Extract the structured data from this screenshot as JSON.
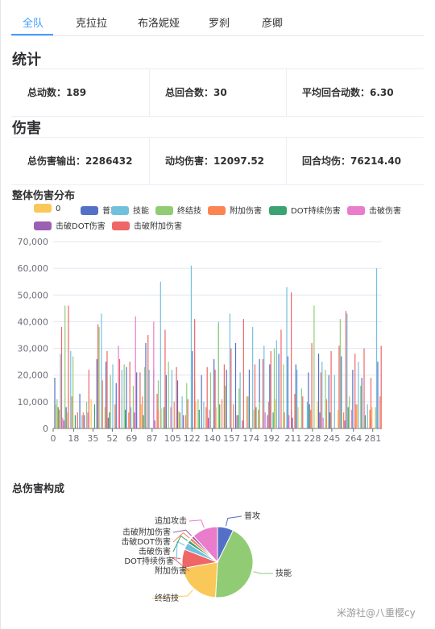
{
  "tabs": [
    {
      "label": "全队",
      "active": true
    },
    {
      "label": "克拉拉",
      "active": false
    },
    {
      "label": "布洛妮娅",
      "active": false
    },
    {
      "label": "罗刹",
      "active": false
    },
    {
      "label": "彦卿",
      "active": false
    }
  ],
  "stats_section": {
    "title": "统计",
    "items": [
      {
        "label": "总动数：",
        "value": "189"
      },
      {
        "label": "总回合数：",
        "value": "30"
      },
      {
        "label": "平均回合动数：",
        "value": "6.30"
      }
    ]
  },
  "damage_section": {
    "title": "伤害",
    "items": [
      {
        "label": "总伤害输出：",
        "value": "2286432"
      },
      {
        "label": "动均伤害：",
        "value": "12097.52"
      },
      {
        "label": "回合均伤：",
        "value": "76214.40"
      }
    ]
  },
  "watermark": "米游社@八重樱cy",
  "chart_data": [
    {
      "type": "bar",
      "title": "整体伤害分布",
      "legend_position": "top-left",
      "ylim": [
        0,
        70000
      ],
      "yticks": [
        "0",
        "10,000",
        "20,000",
        "30,000",
        "40,000",
        "50,000",
        "60,000",
        "70,000"
      ],
      "xlim": [
        0,
        289
      ],
      "xticks": [
        0,
        18,
        35,
        52,
        69,
        87,
        105,
        122,
        140,
        157,
        174,
        192,
        211,
        228,
        245,
        264,
        281
      ],
      "series": [
        {
          "name": "0",
          "color": "#fac858",
          "peaks": [
            [
              2,
              9000
            ],
            [
              12,
              6000
            ],
            [
              33,
              11000
            ],
            [
              45,
              8000
            ],
            [
              60,
              12000
            ],
            [
              77,
              9000
            ],
            [
              95,
              7500
            ],
            [
              110,
              6500
            ],
            [
              125,
              10000
            ],
            [
              143,
              8000
            ],
            [
              160,
              9000
            ],
            [
              176,
              7000
            ],
            [
              195,
              11000
            ],
            [
              215,
              8000
            ],
            [
              232,
              10000
            ],
            [
              250,
              7000
            ],
            [
              267,
              9000
            ],
            [
              280,
              8000
            ]
          ]
        },
        {
          "name": "普攻",
          "color": "#5470c6",
          "peaks": [
            [
              1,
              19000
            ],
            [
              11,
              8000
            ],
            [
              23,
              13000
            ],
            [
              38,
              26000
            ],
            [
              46,
              25000
            ],
            [
              55,
              17000
            ],
            [
              64,
              23000
            ],
            [
              73,
              21000
            ],
            [
              81,
              32000
            ],
            [
              88,
              22000
            ],
            [
              99,
              20000
            ],
            [
              109,
              18000
            ],
            [
              122,
              29000
            ],
            [
              130,
              20000
            ],
            [
              141,
              26000
            ],
            [
              152,
              22000
            ],
            [
              160,
              32000
            ],
            [
              172,
              22000
            ],
            [
              181,
              26000
            ],
            [
              190,
              24000
            ],
            [
              198,
              28000
            ],
            [
              206,
              27000
            ],
            [
              213,
              24000
            ],
            [
              224,
              21000
            ],
            [
              233,
              28000
            ],
            [
              242,
              20000
            ],
            [
              253,
              27000
            ],
            [
              263,
              22000
            ],
            [
              271,
              19000
            ],
            [
              285,
              25000
            ]
          ]
        },
        {
          "name": "技能",
          "color": "#73c0de",
          "peaks": [
            [
              6,
              28000
            ],
            [
              15,
              29000
            ],
            [
              25,
              5000
            ],
            [
              42,
              43000
            ],
            [
              52,
              24000
            ],
            [
              60,
              22000
            ],
            [
              68,
              8000
            ],
            [
              84,
              22000
            ],
            [
              94,
              55000
            ],
            [
              104,
              22000
            ],
            [
              113,
              12000
            ],
            [
              121,
              61000
            ],
            [
              132,
              10000
            ],
            [
              145,
              40000
            ],
            [
              155,
              43000
            ],
            [
              164,
              21000
            ],
            [
              175,
              38000
            ],
            [
              185,
              31000
            ],
            [
              196,
              33000
            ],
            [
              205,
              53000
            ],
            [
              214,
              22000
            ],
            [
              223,
              10000
            ],
            [
              236,
              25000
            ],
            [
              247,
              20000
            ],
            [
              258,
              43000
            ],
            [
              268,
              25000
            ],
            [
              276,
              9000
            ],
            [
              284,
              60000
            ]
          ]
        },
        {
          "name": "终结技",
          "color": "#91cc75",
          "peaks": [
            [
              3,
              11000
            ],
            [
              10,
              46000
            ],
            [
              17,
              27000
            ],
            [
              29,
              10000
            ],
            [
              40,
              38000
            ],
            [
              50,
              20000
            ],
            [
              62,
              24000
            ],
            [
              70,
              16000
            ],
            [
              80,
              23000
            ],
            [
              92,
              18000
            ],
            [
              101,
              25000
            ],
            [
              117,
              17000
            ],
            [
              127,
              11000
            ],
            [
              138,
              21000
            ],
            [
              145,
              39000
            ],
            [
              151,
              16000
            ],
            [
              163,
              15000
            ],
            [
              171,
              12000
            ],
            [
              181,
              10000
            ],
            [
              194,
              30000
            ],
            [
              202,
              24000
            ],
            [
              218,
              15000
            ],
            [
              229,
              46000
            ],
            [
              239,
              22000
            ],
            [
              252,
              41000
            ],
            [
              260,
              12000
            ],
            [
              270,
              16000
            ],
            [
              283,
              8000
            ]
          ]
        },
        {
          "name": "附加伤害",
          "color": "#fc8452",
          "peaks": [
            [
              5,
              7000
            ],
            [
              16,
              12000
            ],
            [
              26,
              6000
            ],
            [
              43,
              18000
            ],
            [
              54,
              9000
            ],
            [
              66,
              6000
            ],
            [
              78,
              12000
            ],
            [
              92,
              7000
            ],
            [
              106,
              10000
            ],
            [
              116,
              5000
            ],
            [
              124,
              18000
            ],
            [
              134,
              8000
            ],
            [
              148,
              11000
            ],
            [
              158,
              9000
            ],
            [
              170,
              12000
            ],
            [
              180,
              7000
            ],
            [
              189,
              10000
            ],
            [
              203,
              6000
            ],
            [
              212,
              13000
            ],
            [
              226,
              7000
            ],
            [
              240,
              11000
            ],
            [
              255,
              6000
            ],
            [
              266,
              9000
            ],
            [
              278,
              7000
            ],
            [
              287,
              12000
            ]
          ]
        },
        {
          "name": "DOT持续伤害",
          "color": "#3ba272",
          "peaks": [
            [
              4,
              8000
            ],
            [
              19,
              5000
            ],
            [
              36,
              9000
            ],
            [
              49,
              6000
            ],
            [
              63,
              7000
            ],
            [
              79,
              5000
            ],
            [
              97,
              8000
            ],
            [
              111,
              6000
            ],
            [
              128,
              7000
            ],
            [
              146,
              9000
            ],
            [
              162,
              5000
            ],
            [
              178,
              8000
            ],
            [
              193,
              6000
            ],
            [
              209,
              7000
            ],
            [
              225,
              9000
            ],
            [
              243,
              6000
            ],
            [
              259,
              8000
            ],
            [
              274,
              5000
            ]
          ]
        },
        {
          "name": "击破伤害",
          "color": "#ea7ccc",
          "peaks": [
            [
              8,
              4000
            ],
            [
              30,
              6000
            ],
            [
              57,
              31000
            ],
            [
              72,
              42000
            ],
            [
              88,
              40000
            ],
            [
              103,
              8000
            ],
            [
              137,
              7000
            ],
            [
              161,
              5000
            ],
            [
              186,
              6000
            ],
            [
              207,
              5000
            ],
            [
              237,
              4000
            ],
            [
              262,
              7000
            ]
          ]
        },
        {
          "name": "击破DOT伤害",
          "color": "#9a60b4",
          "peaks": [
            [
              9,
              3000
            ],
            [
              27,
              5000
            ],
            [
              48,
              4000
            ],
            [
              71,
              6000
            ],
            [
              89,
              3000
            ],
            [
              114,
              5000
            ],
            [
              136,
              4000
            ],
            [
              166,
              3000
            ],
            [
              188,
              5000
            ],
            [
              210,
              4000
            ],
            [
              234,
              6000
            ],
            [
              256,
              3000
            ],
            [
              279,
              4000
            ]
          ]
        },
        {
          "name": "击破附加伤害",
          "color": "#ee6666",
          "peaks": [
            [
              7,
              38000
            ],
            [
              13,
              46000
            ],
            [
              21,
              6000
            ],
            [
              31,
              22000
            ],
            [
              39,
              39000
            ],
            [
              47,
              29000
            ],
            [
              58,
              26000
            ],
            [
              67,
              25000
            ],
            [
              76,
              21000
            ],
            [
              83,
              35000
            ],
            [
              91,
              13000
            ],
            [
              98,
              37000
            ],
            [
              108,
              23000
            ],
            [
              118,
              11000
            ],
            [
              124,
              41000
            ],
            [
              135,
              23000
            ],
            [
              142,
              22000
            ],
            [
              150,
              24000
            ],
            [
              156,
              30000
            ],
            [
              167,
              41000
            ],
            [
              177,
              24000
            ],
            [
              184,
              26000
            ],
            [
              191,
              29000
            ],
            [
              200,
              37000
            ],
            [
              209,
              51000
            ],
            [
              219,
              12000
            ],
            [
              227,
              32000
            ],
            [
              235,
              21000
            ],
            [
              244,
              29000
            ],
            [
              251,
              31000
            ],
            [
              257,
              44000
            ],
            [
              265,
              28000
            ],
            [
              273,
              30000
            ],
            [
              279,
              19000
            ],
            [
              288,
              31000
            ]
          ]
        }
      ]
    },
    {
      "type": "pie",
      "title": "总伤害构成",
      "slices": [
        {
          "name": "普攻",
          "value": 7.3,
          "color": "#5470c6"
        },
        {
          "name": "技能",
          "value": 43.6,
          "color": "#91cc75"
        },
        {
          "name": "终结技",
          "value": 21.3,
          "color": "#fac858"
        },
        {
          "name": "附加伤害",
          "value": 8.7,
          "color": "#ee6666"
        },
        {
          "name": "DOT持续伤害",
          "value": 3.2,
          "color": "#73c0de"
        },
        {
          "name": "击破伤害",
          "value": 1.5,
          "color": "#3ba272"
        },
        {
          "name": "击破DOT伤害",
          "value": 1.4,
          "color": "#fc8452"
        },
        {
          "name": "击破附加伤害",
          "value": 1.2,
          "color": "#9a60b4"
        },
        {
          "name": "追加攻击",
          "value": 11.8,
          "color": "#ea7ccc"
        }
      ]
    }
  ]
}
